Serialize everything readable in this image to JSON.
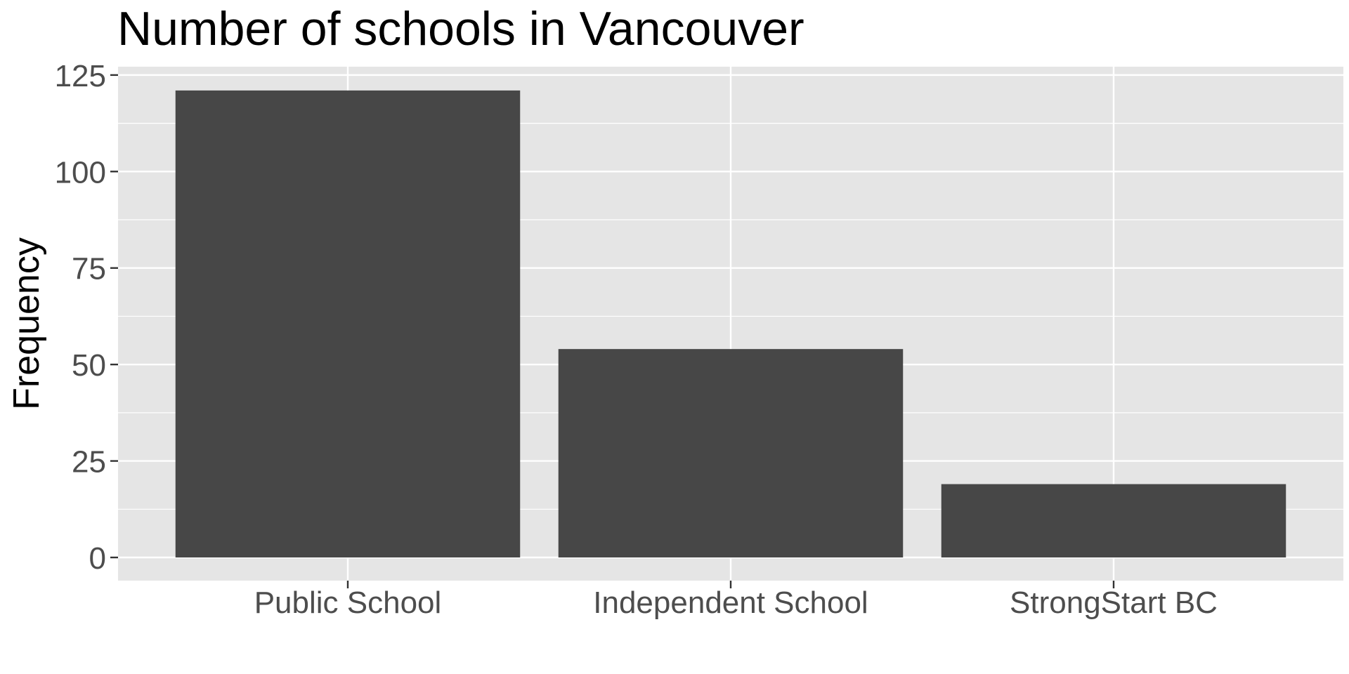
{
  "chart_data": {
    "type": "bar",
    "title": "Number of schools in Vancouver",
    "xlabel": "",
    "ylabel": "Frequency",
    "categories": [
      "Public School",
      "Independent School",
      "StrongStart BC"
    ],
    "values": [
      121,
      54,
      19
    ],
    "ylim": [
      0,
      128.2
    ],
    "yticks": [
      0,
      25,
      50,
      75,
      100,
      125
    ],
    "ytick_labels": [
      "0",
      "25",
      "50",
      "75",
      "100",
      "125"
    ],
    "grid": true,
    "legend": "none",
    "colors": {
      "bar": "#474747",
      "panel": "#E5E5E5",
      "grid": "#FFFFFF",
      "tick_text": "#4D4D4D",
      "tick_mark": "#333333"
    }
  }
}
